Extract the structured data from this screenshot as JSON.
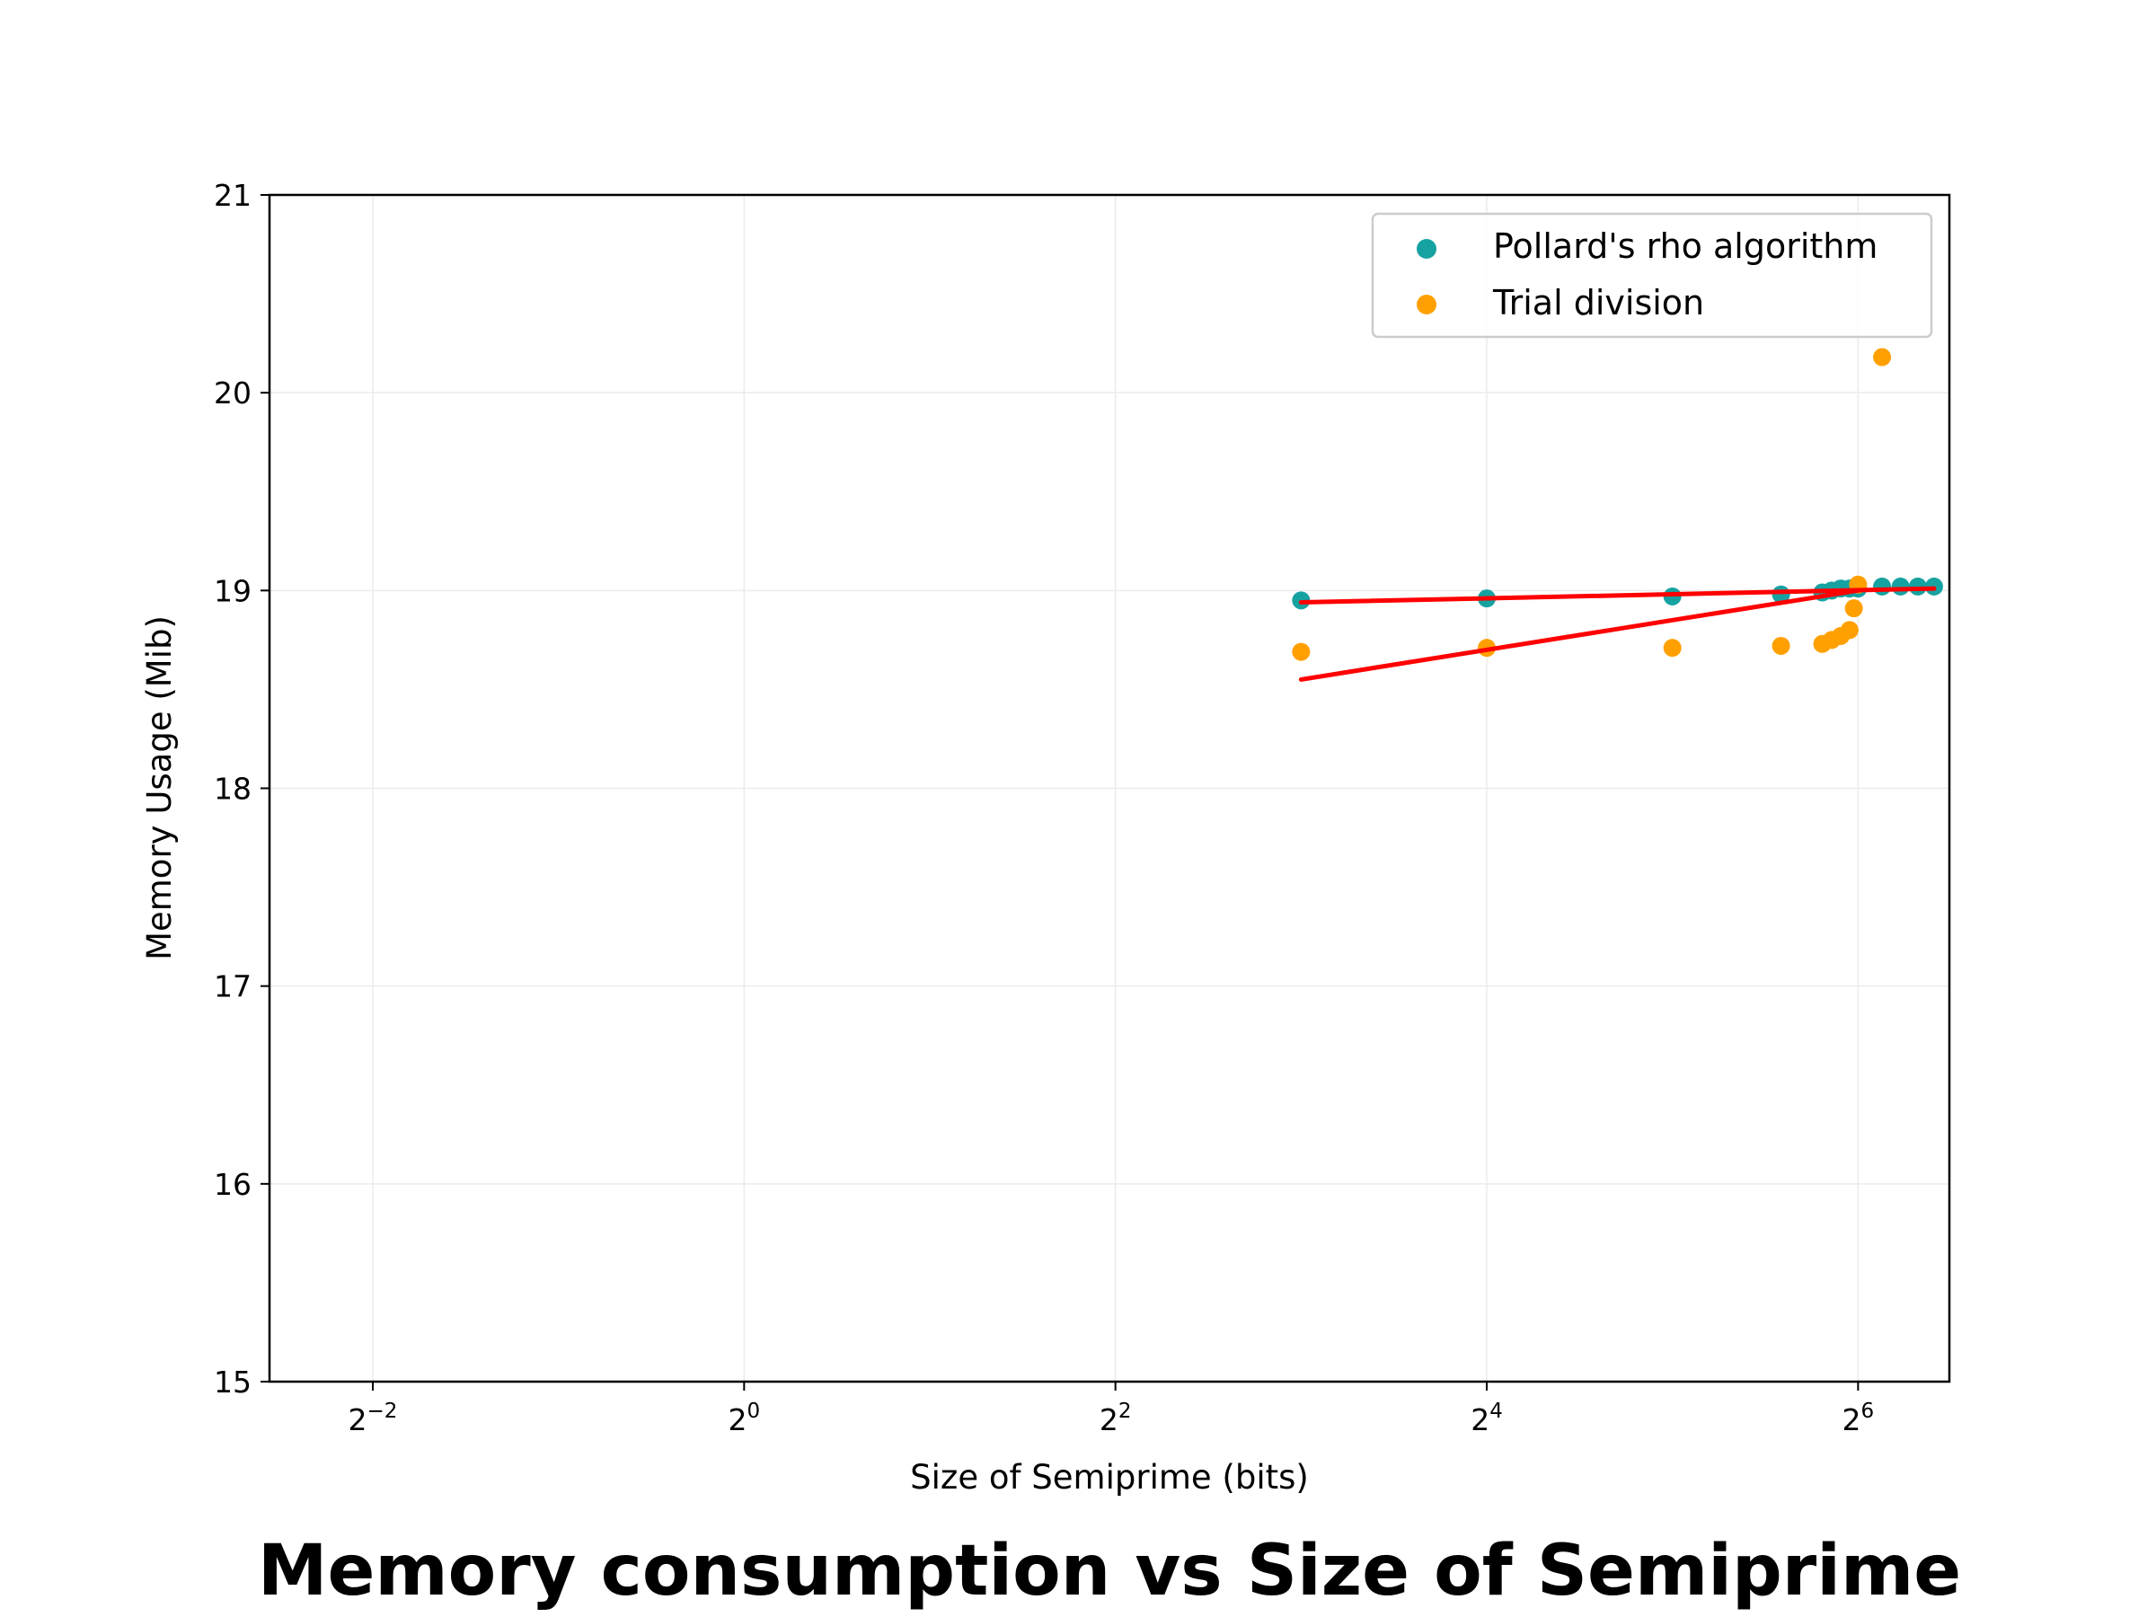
{
  "chart_data": {
    "type": "scatter",
    "title": "Memory consumption vs Size of Semiprime",
    "xlabel": "Size of Semiprime (bits)",
    "ylabel": "Memory Usage (Mib)",
    "xscale": "log2",
    "xlim": [
      0.17,
      90
    ],
    "ylim": [
      15,
      21
    ],
    "xticks": [
      {
        "value": 0.25,
        "base": "2",
        "exp": "−2"
      },
      {
        "value": 1,
        "base": "2",
        "exp": "0"
      },
      {
        "value": 4,
        "base": "2",
        "exp": "2"
      },
      {
        "value": 16,
        "base": "2",
        "exp": "4"
      },
      {
        "value": 64,
        "base": "2",
        "exp": "6"
      }
    ],
    "yticks": [
      15,
      16,
      17,
      18,
      19,
      20,
      21
    ],
    "grid": true,
    "legend_position": "top-right",
    "series": [
      {
        "name": "Pollard's rho algorithm",
        "color": "#17a2a2",
        "x": [
          8,
          16,
          32,
          48,
          56,
          58,
          60,
          62,
          64,
          70,
          75,
          80,
          85
        ],
        "y": [
          18.95,
          18.96,
          18.97,
          18.98,
          18.99,
          19.0,
          19.01,
          19.01,
          19.01,
          19.02,
          19.02,
          19.02,
          19.02
        ]
      },
      {
        "name": "Trial division",
        "color": "#ffa000",
        "x": [
          8,
          16,
          32,
          48,
          56,
          58,
          60,
          62,
          63,
          64,
          70
        ],
        "y": [
          18.69,
          18.71,
          18.71,
          18.72,
          18.73,
          18.75,
          18.77,
          18.8,
          18.91,
          19.03,
          20.18
        ]
      }
    ],
    "trend_lines": [
      {
        "color": "#ff0000",
        "x": [
          8,
          85
        ],
        "y": [
          18.94,
          19.01
        ]
      },
      {
        "color": "#ff0000",
        "x": [
          8,
          64
        ],
        "y": [
          18.55,
          19.0
        ]
      }
    ]
  }
}
